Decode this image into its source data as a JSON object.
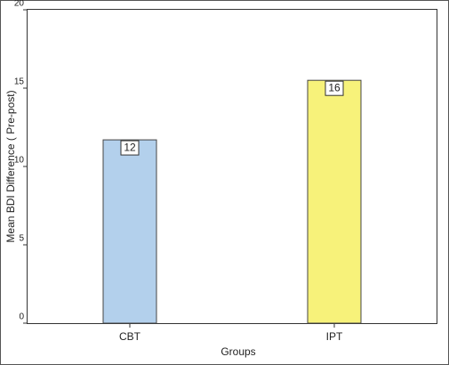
{
  "chart_data": {
    "type": "bar",
    "x_label": "Groups",
    "y_label": "Mean BDI Difference ( Pre-post)",
    "categories": [
      "CBT",
      "IPT"
    ],
    "values": [
      11.7,
      15.5
    ],
    "value_labels": [
      "12",
      "16"
    ],
    "colors": [
      "#b3d0ec",
      "#f7f27a"
    ],
    "ylim": [
      0,
      20
    ],
    "yticks": [
      0,
      5,
      10,
      15,
      20
    ]
  }
}
